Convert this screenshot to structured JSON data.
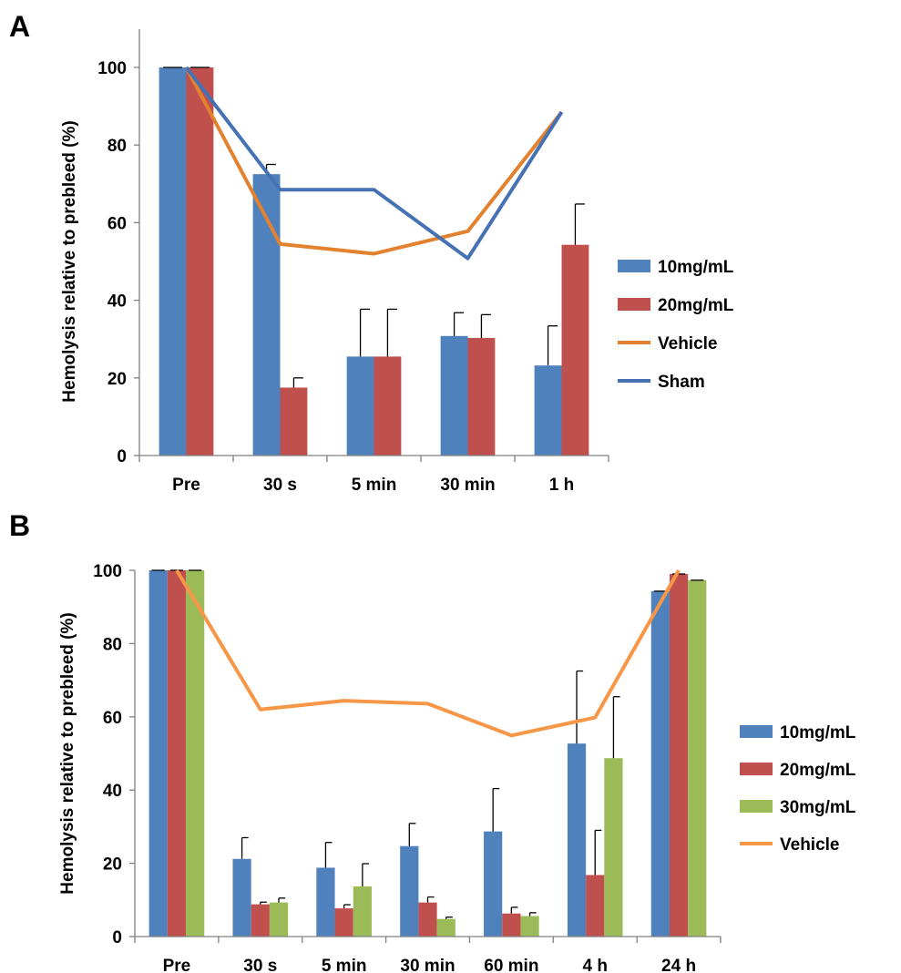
{
  "chart_data": [
    {
      "panel": "A",
      "type": "bar",
      "ylabel": "Hemolysis relative to prebleed (%)",
      "xlabel": "",
      "ylim": [
        0,
        100
      ],
      "yticks": [
        0,
        20,
        40,
        60,
        80,
        100
      ],
      "categories": [
        "Pre",
        "30 s",
        "5 min",
        "30 min",
        "1 h"
      ],
      "series": [
        {
          "name": "10mg/mL",
          "kind": "bar",
          "color": "#4f81bd",
          "values": [
            100,
            72.5,
            25.5,
            30.8,
            23.2
          ],
          "errors": [
            0,
            2.5,
            12.2,
            6.0,
            10.2
          ]
        },
        {
          "name": "20mg/mL",
          "kind": "bar",
          "color": "#c0504d",
          "values": [
            100,
            17.5,
            25.5,
            30.3,
            54.3
          ],
          "errors": [
            0,
            2.5,
            12.2,
            6.0,
            10.5
          ]
        },
        {
          "name": "Vehicle",
          "kind": "line",
          "color": "#e2822e",
          "values": [
            100,
            54.5,
            52.0,
            57.8,
            88.5
          ]
        },
        {
          "name": "Sham",
          "kind": "line",
          "color": "#4472b4",
          "values": [
            100,
            68.5,
            68.5,
            50.8,
            88.5
          ]
        }
      ],
      "legend_position": "right"
    },
    {
      "panel": "B",
      "type": "bar",
      "ylabel": "Hemolysis relative to prebleed (%)",
      "xlabel": "",
      "ylim": [
        0,
        100
      ],
      "yticks": [
        0,
        20,
        40,
        60,
        80,
        100
      ],
      "categories": [
        "Pre",
        "30 s",
        "5 min",
        "30 min",
        "60 min",
        "4 h",
        "24 h"
      ],
      "series": [
        {
          "name": "10mg/mL",
          "kind": "bar",
          "color": "#4f81bd",
          "values": [
            100,
            21.2,
            18.8,
            24.7,
            28.7,
            52.7,
            94.3
          ],
          "errors": [
            0,
            5.8,
            6.9,
            6.2,
            11.7,
            19.8,
            0
          ]
        },
        {
          "name": "20mg/mL",
          "kind": "bar",
          "color": "#c0504d",
          "values": [
            100,
            8.8,
            7.7,
            9.3,
            6.3,
            16.8,
            99.0
          ],
          "errors": [
            0,
            0.6,
            1.0,
            1.5,
            1.7,
            12.2,
            0
          ]
        },
        {
          "name": "30mg/mL",
          "kind": "bar",
          "color": "#9bbb59",
          "values": [
            100,
            9.3,
            13.7,
            4.8,
            5.6,
            48.7,
            97.3
          ],
          "errors": [
            0,
            1.2,
            6.2,
            0.5,
            0.9,
            16.8,
            0
          ]
        },
        {
          "name": "Vehicle",
          "kind": "line",
          "color": "#f79646",
          "values": [
            100,
            62.0,
            64.4,
            63.6,
            54.9,
            59.8,
            100
          ]
        }
      ],
      "legend_position": "right"
    }
  ],
  "panels": [
    {
      "letter": "A"
    },
    {
      "letter": "B"
    }
  ]
}
